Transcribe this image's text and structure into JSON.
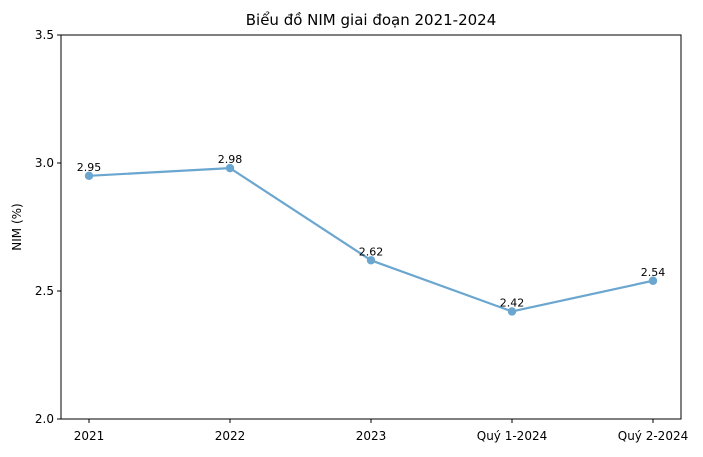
{
  "chart_data": {
    "type": "line",
    "title": "Biểu đồ NIM giai đoạn 2021-2024",
    "xlabel": "",
    "ylabel": "NIM (%)",
    "categories": [
      "2021",
      "2022",
      "2023",
      "Quý 1-2024",
      "Quý 2-2024"
    ],
    "series": [
      {
        "values": [
          2.95,
          2.98,
          2.62,
          2.42,
          2.54
        ],
        "labels": [
          "2.95",
          "2.98",
          "2.62",
          "2.42",
          "2.54"
        ],
        "color": "#6aa6cf"
      }
    ],
    "ylim": [
      2.0,
      3.5
    ],
    "yticks": [
      "2.0",
      "2.5",
      "3.0",
      "3.5"
    ],
    "grid": false,
    "legend": "none"
  }
}
